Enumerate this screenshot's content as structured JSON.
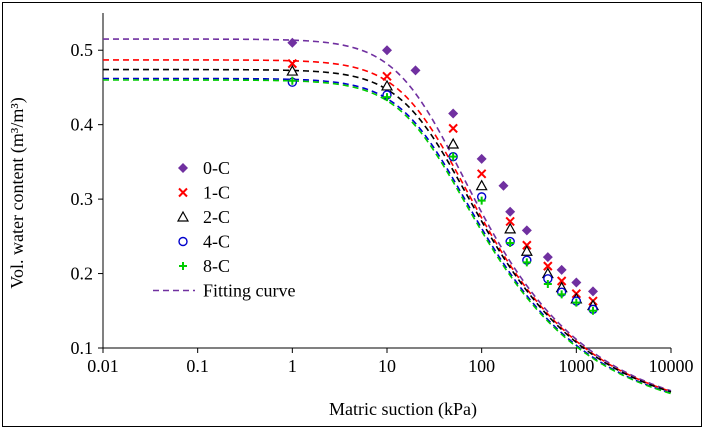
{
  "chart_data": {
    "type": "scatter",
    "xlabel": "Matric suction (kPa)",
    "ylabel": "Vol. water content (m³/m³)",
    "xscale": "log",
    "xlim": [
      0.01,
      10000
    ],
    "ylim": [
      0.1,
      0.55
    ],
    "x_ticks": [
      0.01,
      0.1,
      1,
      10,
      100,
      1000,
      10000
    ],
    "x_tick_labels": [
      "0.01",
      "0.1",
      "1",
      "10",
      "100",
      "1000",
      "10000"
    ],
    "y_ticks": [
      0.1,
      0.2,
      0.3,
      0.4,
      0.5
    ],
    "y_tick_labels": [
      "0.1",
      "0.2",
      "0.3",
      "0.4",
      "0.5"
    ],
    "grid": false,
    "legend_position": "center-left",
    "series": [
      {
        "name": "0-C",
        "color": "#7030a0",
        "marker": "diamond",
        "x": [
          1,
          10,
          20,
          50,
          100,
          170,
          200,
          300,
          500,
          700,
          1000,
          1500
        ],
        "y": [
          0.51,
          0.5,
          0.473,
          0.415,
          0.354,
          0.318,
          0.283,
          0.258,
          0.222,
          0.205,
          0.188,
          0.176
        ],
        "fit": {
          "theta_s": 0.515,
          "theta_r": 0.0,
          "alpha": 0.038,
          "n": 1.42
        }
      },
      {
        "name": "1-C",
        "color": "#ff0000",
        "marker": "x",
        "x": [
          1,
          10,
          50,
          100,
          200,
          300,
          500,
          700,
          1000,
          1500
        ],
        "y": [
          0.482,
          0.465,
          0.395,
          0.334,
          0.27,
          0.238,
          0.21,
          0.19,
          0.173,
          0.163
        ],
        "fit": {
          "theta_s": 0.487,
          "theta_r": 0.0,
          "alpha": 0.035,
          "n": 1.42
        }
      },
      {
        "name": "2-C",
        "color": "#000000",
        "marker": "triangle-open",
        "x": [
          1,
          10,
          50,
          100,
          200,
          300,
          500,
          700,
          1000,
          1500
        ],
        "y": [
          0.472,
          0.452,
          0.374,
          0.318,
          0.26,
          0.23,
          0.2,
          0.181,
          0.166,
          0.157
        ],
        "fit": {
          "theta_s": 0.474,
          "theta_r": 0.0,
          "alpha": 0.034,
          "n": 1.42
        }
      },
      {
        "name": "4-C",
        "color": "#0000cc",
        "marker": "circle-open",
        "x": [
          1,
          10,
          50,
          100,
          200,
          300,
          500,
          700,
          1000,
          1500
        ],
        "y": [
          0.457,
          0.44,
          0.357,
          0.303,
          0.243,
          0.218,
          0.193,
          0.175,
          0.163,
          0.152
        ],
        "fit": {
          "theta_s": 0.462,
          "theta_r": 0.0,
          "alpha": 0.035,
          "n": 1.42
        }
      },
      {
        "name": "8-C",
        "color": "#00cc00",
        "marker": "plus",
        "x": [
          1,
          10,
          50,
          100,
          200,
          300,
          500,
          700,
          1000,
          1500
        ],
        "y": [
          0.459,
          0.437,
          0.357,
          0.298,
          0.241,
          0.215,
          0.186,
          0.172,
          0.161,
          0.15
        ],
        "fit": {
          "theta_s": 0.46,
          "theta_r": 0.0,
          "alpha": 0.036,
          "n": 1.42
        }
      }
    ],
    "fitting_legend_label": "Fitting curve",
    "fitting_legend_color": "#7030a0"
  }
}
